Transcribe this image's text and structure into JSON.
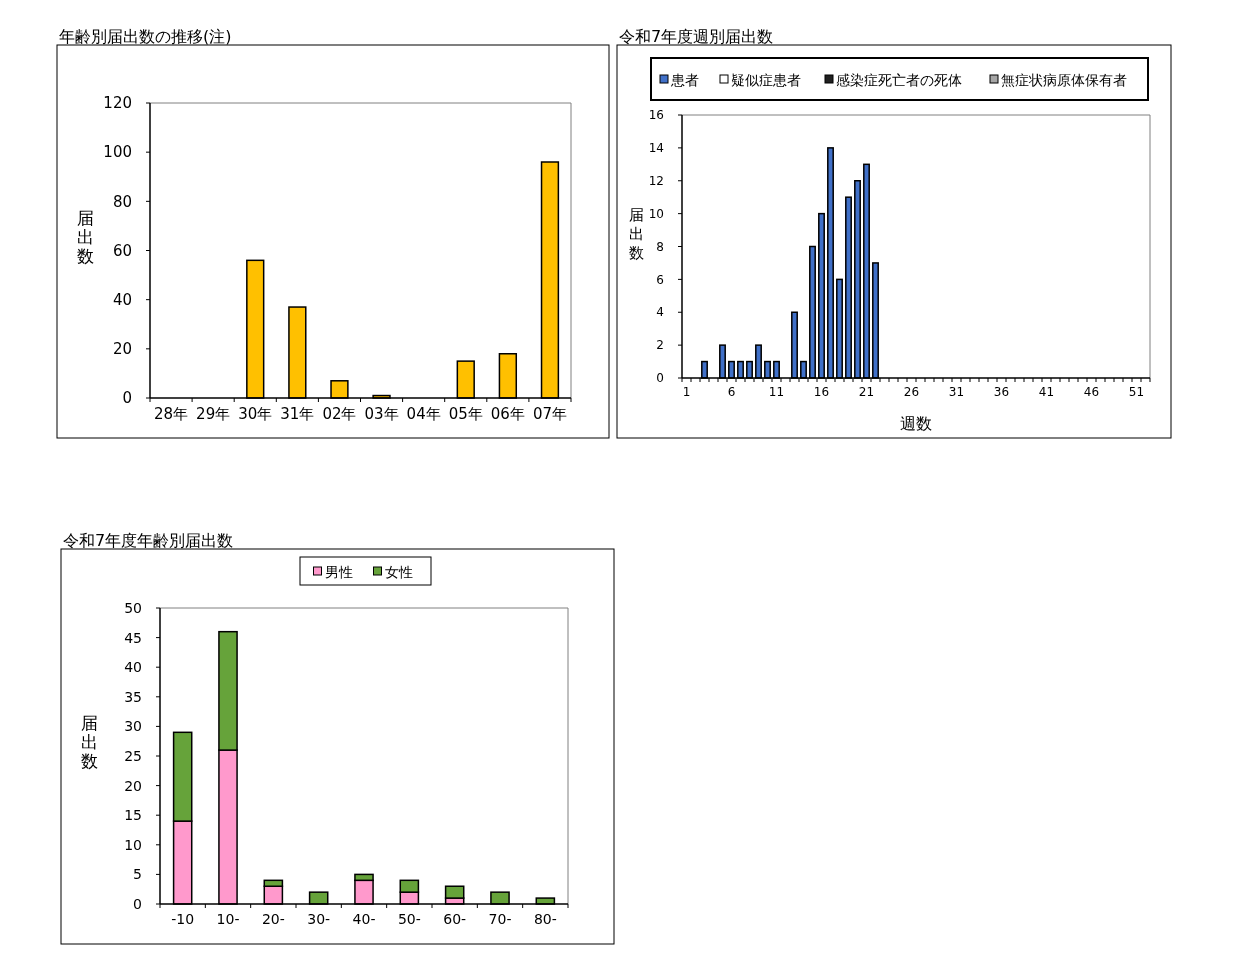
{
  "chart_data": [
    {
      "type": "bar",
      "title": "年齢別届出数の推移(注)",
      "ylabel": "届出数",
      "categories": [
        "28年",
        "29年",
        "30年",
        "31年",
        "02年",
        "03年",
        "04年",
        "05年",
        "06年",
        "07年"
      ],
      "values": [
        0,
        0,
        56,
        37,
        7,
        1,
        0,
        15,
        18,
        96
      ],
      "color": "#ffc000",
      "ylim": [
        0,
        120
      ],
      "yticks": [
        0,
        20,
        40,
        60,
        80,
        100,
        120
      ],
      "grid": false,
      "legend": false
    },
    {
      "type": "bar",
      "title": "令和7年度週別届出数",
      "ylabel": "届出数",
      "xlabel": "週数",
      "stacked": true,
      "legend": "top",
      "categories": [
        "1",
        null,
        null,
        null,
        null,
        "6",
        null,
        null,
        null,
        null,
        "11",
        null,
        null,
        null,
        null,
        "16",
        null,
        null,
        null,
        null,
        "21",
        null,
        null,
        null,
        null,
        "26",
        null,
        null,
        null,
        null,
        "31",
        null,
        null,
        null,
        null,
        "36",
        null,
        null,
        null,
        null,
        "41",
        null,
        null,
        null,
        null,
        "46",
        null,
        null,
        null,
        null,
        "51",
        null
      ],
      "series": [
        {
          "name": "患者",
          "color": "#4070c8",
          "values": [
            0,
            0,
            1,
            0,
            2,
            1,
            1,
            1,
            2,
            1,
            1,
            0,
            4,
            1,
            8,
            10,
            14,
            6,
            11,
            12,
            13,
            7,
            null,
            null,
            null,
            null,
            null,
            null,
            null,
            null,
            null,
            null,
            null,
            null,
            null,
            null,
            null,
            null,
            null,
            null,
            null,
            null,
            null,
            null,
            null,
            null,
            null,
            null,
            null,
            null,
            null,
            null
          ]
        },
        {
          "name": "疑似症患者",
          "color": "#ffffff",
          "values": [
            0,
            0,
            0,
            0,
            0,
            0,
            0,
            0,
            0,
            0,
            0,
            0,
            0,
            0,
            0,
            0,
            0,
            0,
            0,
            0,
            0,
            0,
            null,
            null,
            null,
            null,
            null,
            null,
            null,
            null,
            null,
            null,
            null,
            null,
            null,
            null,
            null,
            null,
            null,
            null,
            null,
            null,
            null,
            null,
            null,
            null,
            null,
            null,
            null,
            null,
            null,
            null
          ]
        },
        {
          "name": "感染症死亡者の死体",
          "color": "#202020",
          "values": [
            0,
            0,
            0,
            0,
            0,
            0,
            0,
            0,
            0,
            0,
            0,
            0,
            0,
            0,
            0,
            0,
            0,
            0,
            0,
            0,
            0,
            0,
            null,
            null,
            null,
            null,
            null,
            null,
            null,
            null,
            null,
            null,
            null,
            null,
            null,
            null,
            null,
            null,
            null,
            null,
            null,
            null,
            null,
            null,
            null,
            null,
            null,
            null,
            null,
            null,
            null,
            null
          ]
        },
        {
          "name": "無症状病原体保有者",
          "color": "#a6a6a6",
          "values": [
            0,
            0,
            0,
            0,
            0,
            0,
            0,
            0,
            0,
            0,
            0,
            0,
            0,
            0,
            0,
            0,
            0,
            0,
            0,
            0,
            0,
            0,
            null,
            null,
            null,
            null,
            null,
            null,
            null,
            null,
            null,
            null,
            null,
            null,
            null,
            null,
            null,
            null,
            null,
            null,
            null,
            null,
            null,
            null,
            null,
            null,
            null,
            null,
            null,
            null,
            null,
            null
          ]
        }
      ],
      "ylim": [
        0,
        16
      ],
      "yticks": [
        0,
        2,
        4,
        6,
        8,
        10,
        12,
        14,
        16
      ],
      "grid": false
    },
    {
      "type": "bar",
      "title": "令和7年度年齢別届出数",
      "ylabel": "届出数",
      "stacked": true,
      "legend": "top",
      "categories": [
        "-10",
        "10-",
        "20-",
        "30-",
        "40-",
        "50-",
        "60-",
        "70-",
        "80-"
      ],
      "series": [
        {
          "name": "男性",
          "color": "#ff99cc",
          "values": [
            14,
            26,
            3,
            0,
            4,
            2,
            1,
            0,
            0
          ]
        },
        {
          "name": "女性",
          "color": "#66a33a",
          "values": [
            15,
            20,
            1,
            2,
            1,
            2,
            2,
            2,
            1
          ]
        }
      ],
      "ylim": [
        0,
        50
      ],
      "yticks": [
        0,
        5,
        10,
        15,
        20,
        25,
        30,
        35,
        40,
        45,
        50
      ],
      "grid": false
    }
  ]
}
